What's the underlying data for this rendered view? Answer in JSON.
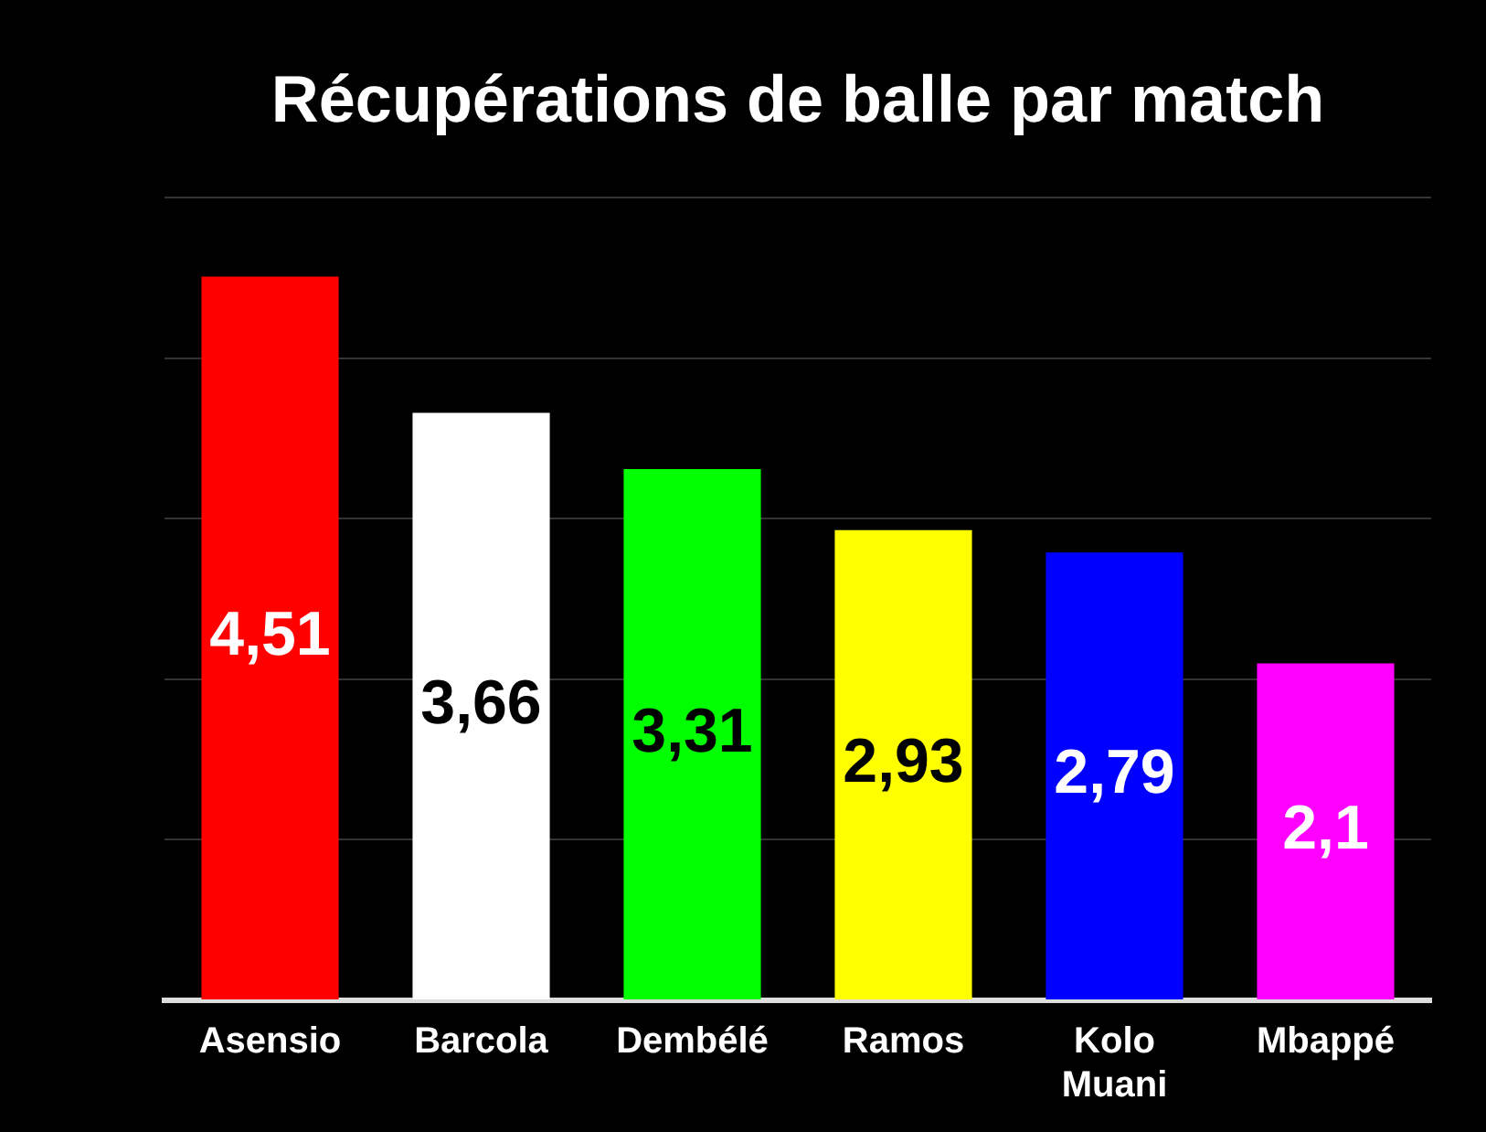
{
  "chart_data": {
    "type": "bar",
    "title": "Récupérations de balle par match",
    "categories": [
      "Asensio",
      "Barcola",
      "Dembélé",
      "Ramos",
      "Kolo Muani",
      "Mbappé"
    ],
    "values": [
      4.51,
      3.66,
      3.31,
      2.93,
      2.79,
      2.1
    ],
    "colors": [
      "#ff0000",
      "#ffffff",
      "#00ff00",
      "#ffff00",
      "#0000ff",
      "#ff00ff"
    ],
    "value_labels": [
      "4,51",
      "3,66",
      "3,31",
      "2,93",
      "2,79",
      "2,1"
    ],
    "ylim": [
      0,
      5
    ],
    "yticks": [
      {
        "value": 0,
        "label": null
      },
      {
        "value": 1,
        "label": null
      },
      {
        "value": 2,
        "label": null
      },
      {
        "value": 3,
        "label": null
      },
      {
        "value": 4,
        "label": null
      },
      {
        "value": 5,
        "label": null
      }
    ],
    "grid": "y",
    "tick_labels": "x",
    "legend": false
  }
}
